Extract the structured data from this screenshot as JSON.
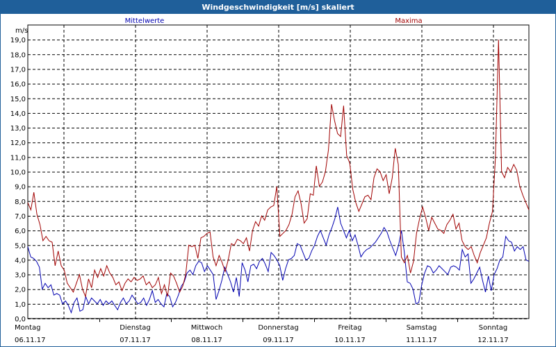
{
  "window": {
    "title": "Windgeschwindigkeit [m/s] skaliert"
  },
  "chart_data": {
    "type": "line",
    "ylabel": "m/s",
    "ylim": [
      0,
      20
    ],
    "yticks": [
      "0,0",
      "1,0",
      "2,0",
      "3,0",
      "4,0",
      "5,0",
      "6,0",
      "7,0",
      "8,0",
      "9,0",
      "10,0",
      "11,0",
      "12,0",
      "13,0",
      "14,0",
      "15,0",
      "16,0",
      "17,0",
      "18,0",
      "19,0"
    ],
    "grid": true,
    "days": [
      {
        "name": "Montag",
        "date": "06.11.17"
      },
      {
        "name": "Dienstag",
        "date": "07.11.17"
      },
      {
        "name": "Mittwoch",
        "date": "08.11.17"
      },
      {
        "name": "Donnerstag",
        "date": "09.11.17"
      },
      {
        "name": "Freitag",
        "date": "10.11.17"
      },
      {
        "name": "Samstag",
        "date": "11.11.17"
      },
      {
        "name": "Sonntag",
        "date": "12.11.17"
      }
    ],
    "series": [
      {
        "name": "Mittelwerte",
        "color": "#0000b0",
        "values": [
          4.9,
          4.2,
          4.1,
          3.9,
          3.5,
          2.0,
          2.4,
          2.1,
          2.3,
          1.6,
          1.7,
          1.6,
          1.0,
          1.2,
          0.9,
          0.4,
          1.1,
          1.4,
          0.5,
          0.6,
          1.5,
          1.0,
          1.4,
          1.2,
          1.0,
          1.3,
          0.9,
          1.2,
          1.0,
          1.2,
          0.9,
          0.6,
          1.1,
          1.4,
          1.0,
          1.2,
          1.6,
          1.3,
          1.0,
          1.1,
          1.4,
          0.9,
          1.3,
          1.9,
          1.1,
          1.3,
          1.0,
          0.8,
          1.7,
          1.5,
          0.8,
          1.1,
          1.6,
          2.2,
          2.5,
          3.1,
          3.3,
          3.0,
          3.6,
          3.9,
          3.8,
          3.2,
          3.6,
          3.3,
          3.0,
          1.3,
          1.9,
          2.6,
          3.5,
          3.0,
          2.5,
          1.8,
          2.8,
          1.5,
          3.8,
          3.3,
          2.5,
          3.6,
          3.7,
          3.4,
          3.9,
          4.1,
          3.7,
          3.2,
          4.5,
          4.3,
          4.0,
          3.6,
          2.6,
          3.4,
          4.0,
          4.1,
          4.3,
          5.1,
          5.0,
          4.5,
          4.0,
          4.1,
          4.6,
          5.0,
          5.6,
          6.0,
          5.5,
          5.0,
          5.7,
          6.2,
          6.8,
          7.6,
          6.5,
          6.0,
          5.5,
          6.0,
          5.3,
          5.7,
          5.0,
          4.2,
          4.5,
          4.7,
          4.8,
          5.0,
          5.2,
          5.5,
          5.8,
          6.2,
          5.9,
          5.3,
          4.8,
          4.3,
          5.0,
          6.0,
          4.5,
          2.5,
          2.4,
          2.0,
          1.0,
          1.1,
          2.3,
          3.1,
          3.6,
          3.5,
          3.1,
          3.3,
          3.6,
          3.4,
          3.2,
          3.0,
          3.5,
          3.6,
          3.5,
          3.3,
          4.7,
          4.2,
          4.4,
          2.4,
          2.7,
          3.1,
          3.5,
          2.6,
          1.8,
          2.9,
          1.9,
          3.0,
          3.4,
          4.0,
          4.2,
          5.6,
          5.3,
          5.2,
          4.6,
          4.9,
          4.7,
          4.9,
          4.0,
          3.9
        ]
      },
      {
        "name": "Maxima",
        "color": "#a00000",
        "values": [
          7.9,
          7.4,
          8.6,
          7.1,
          6.4,
          5.3,
          5.6,
          5.3,
          5.2,
          3.6,
          4.6,
          3.6,
          3.3,
          2.4,
          2.1,
          1.8,
          2.4,
          3.0,
          2.0,
          1.5,
          2.7,
          2.1,
          3.3,
          2.8,
          3.4,
          2.9,
          3.6,
          3.1,
          2.8,
          2.3,
          2.5,
          1.9,
          2.4,
          2.7,
          2.5,
          2.8,
          2.6,
          2.7,
          2.9,
          2.3,
          2.5,
          2.1,
          2.3,
          2.8,
          1.7,
          2.3,
          1.5,
          3.1,
          2.9,
          2.4,
          1.8,
          2.2,
          3.0,
          5.0,
          4.9,
          5.0,
          4.1,
          5.5,
          5.6,
          5.8,
          5.9,
          4.2,
          3.6,
          4.3,
          3.8,
          3.2,
          4.0,
          5.1,
          5.0,
          5.4,
          5.3,
          5.1,
          5.5,
          4.6,
          6.0,
          6.6,
          6.3,
          7.0,
          6.7,
          7.4,
          7.6,
          7.7,
          9.0,
          5.6,
          5.8,
          6.0,
          6.4,
          7.1,
          8.3,
          8.7,
          7.8,
          6.5,
          6.8,
          8.5,
          8.4,
          10.4,
          9.0,
          9.3,
          10.0,
          11.5,
          14.6,
          13.5,
          12.6,
          12.4,
          14.5,
          11.1,
          10.6,
          8.8,
          7.9,
          7.3,
          7.8,
          8.3,
          8.4,
          8.1,
          9.6,
          10.2,
          10.0,
          9.4,
          9.8,
          8.5,
          9.6,
          11.6,
          10.5,
          4.2,
          3.8,
          4.3,
          3.1,
          3.9,
          5.8,
          6.8,
          7.6,
          6.9,
          6.0,
          6.9,
          6.5,
          6.1,
          6.0,
          5.8,
          6.4,
          6.7,
          7.1,
          6.1,
          6.5,
          5.3,
          4.9,
          4.7,
          4.9,
          4.3,
          3.8,
          4.5,
          5.0,
          5.5,
          6.5,
          7.3,
          11.0,
          19.0,
          10.0,
          9.6,
          10.3,
          10.0,
          10.5,
          10.1,
          9.0,
          8.4,
          7.9,
          7.4
        ]
      }
    ]
  }
}
